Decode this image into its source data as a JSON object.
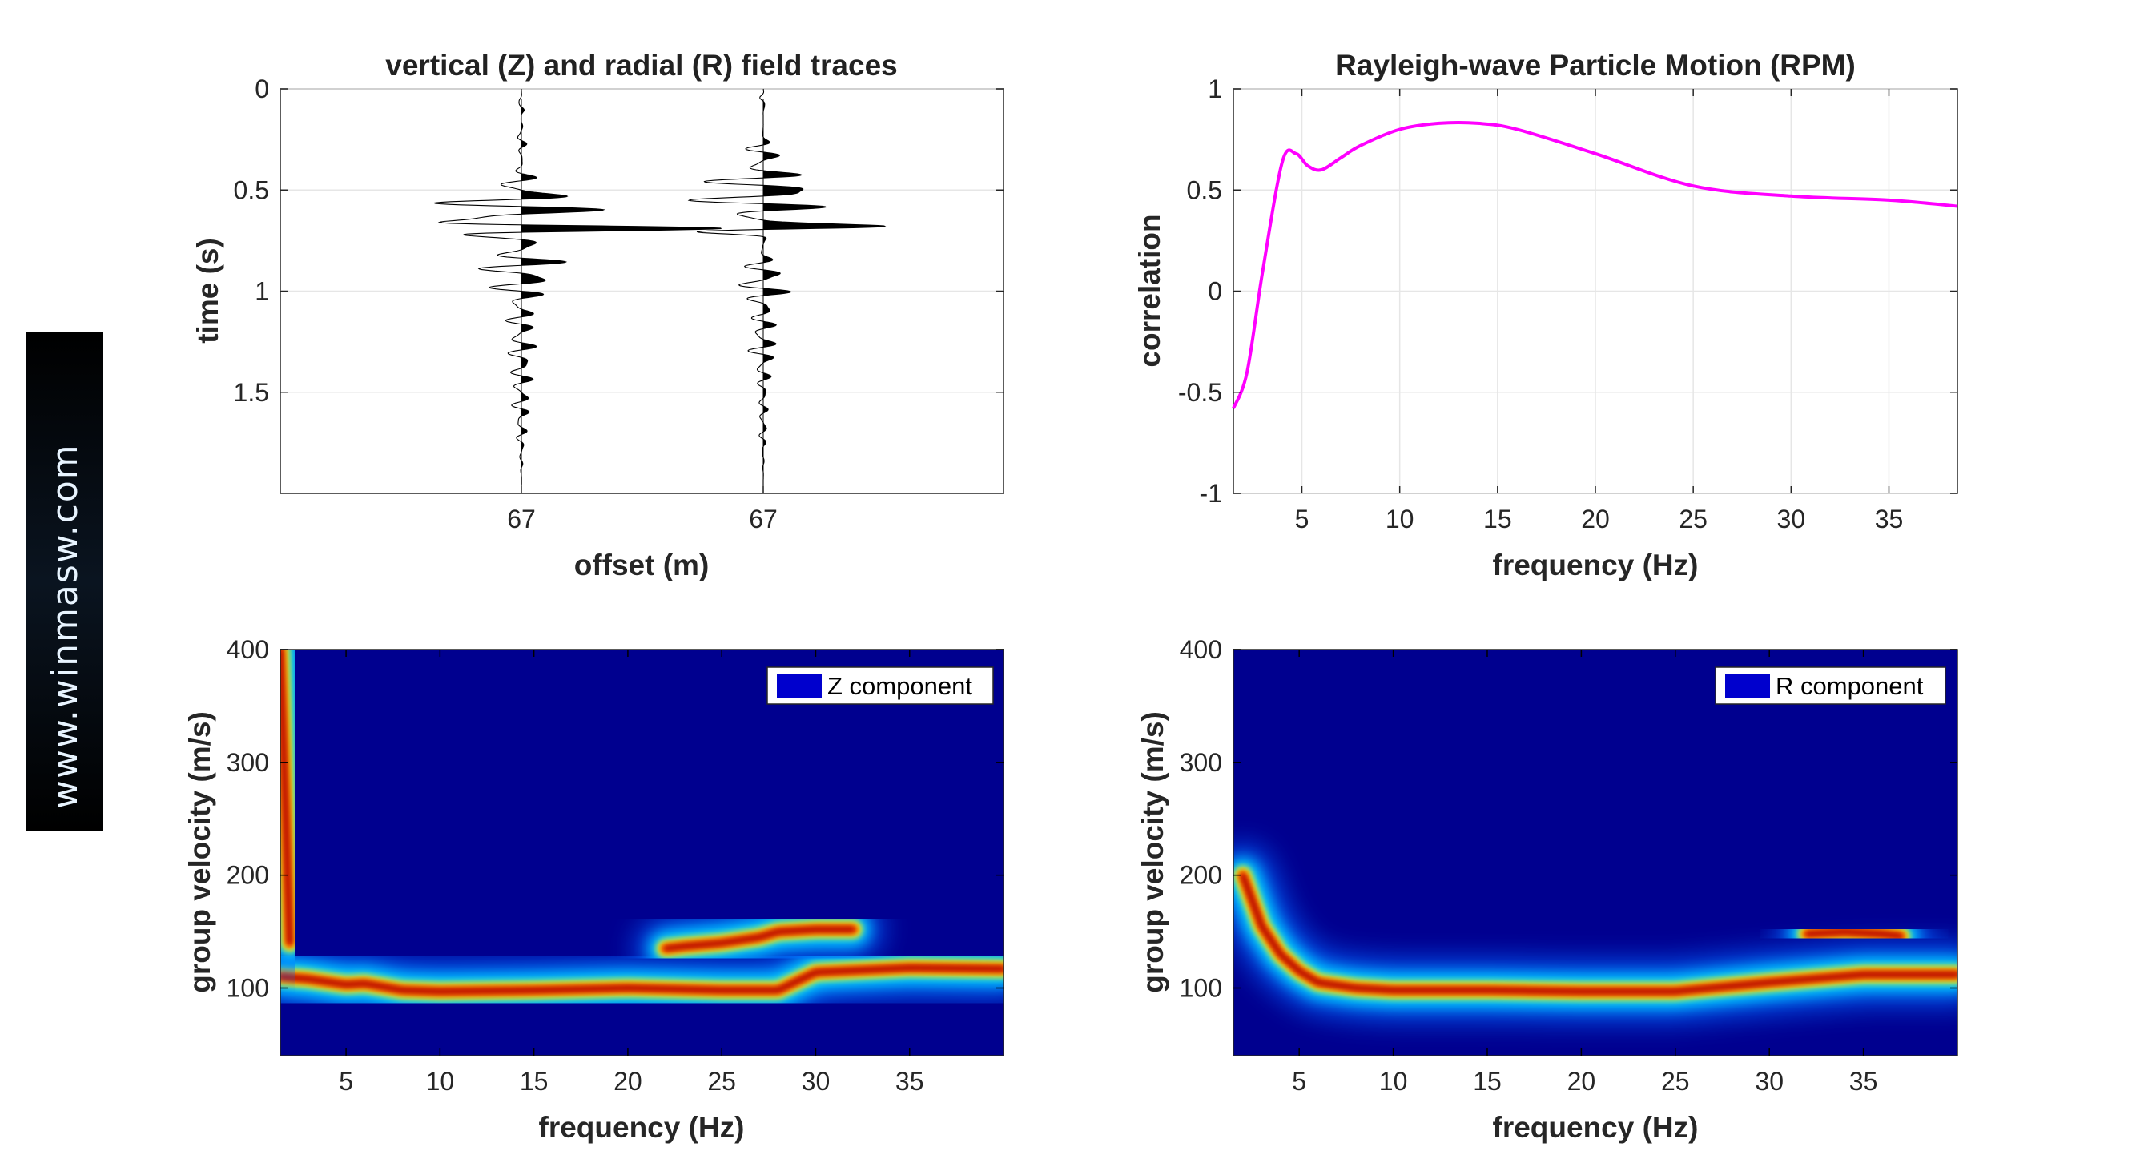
{
  "watermark": "www.winmasw.com",
  "chart_data": [
    {
      "type": "line",
      "title": "vertical (Z) and radial (R) field traces",
      "xlabel": "offset (m)",
      "ylabel": "time (s)",
      "ylim": [
        0,
        2
      ],
      "yticks": [
        "0",
        "0.5",
        "1",
        "1.5"
      ],
      "xtick_labels": [
        "67",
        "67"
      ],
      "grid": true,
      "series": [
        {
          "component": "Z",
          "offset_label": "67"
        },
        {
          "component": "R",
          "offset_label": "67"
        }
      ]
    },
    {
      "type": "line",
      "title": "Rayleigh-wave Particle Motion (RPM)",
      "xlabel": "frequency (Hz)",
      "ylabel": "correlation",
      "xlim": [
        1.5,
        38.5
      ],
      "ylim": [
        -1,
        1
      ],
      "xticks": [
        "5",
        "10",
        "15",
        "20",
        "25",
        "30",
        "35"
      ],
      "yticks": [
        "1",
        "0.5",
        "0",
        "-0.5",
        "-1"
      ],
      "grid": true,
      "color": "#ff00ff",
      "x": [
        1.5,
        2.2,
        3.0,
        4.0,
        4.7,
        5.3,
        6.0,
        7.0,
        8.0,
        10.0,
        12.0,
        14.0,
        16.0,
        20.0,
        25.0,
        30.0,
        35.0,
        38.5
      ],
      "y": [
        -0.58,
        -0.4,
        0.1,
        0.64,
        0.68,
        0.62,
        0.6,
        0.66,
        0.72,
        0.8,
        0.83,
        0.83,
        0.8,
        0.68,
        0.52,
        0.47,
        0.45,
        0.42
      ]
    },
    {
      "type": "heatmap",
      "legend": "Z component",
      "legend_position": "top-right",
      "xlabel": "frequency (Hz)",
      "ylabel": "group velocity (m/s)",
      "xlim": [
        1.5,
        40
      ],
      "ylim": [
        40,
        400
      ],
      "xticks": [
        "5",
        "10",
        "15",
        "20",
        "25",
        "30",
        "35"
      ],
      "yticks": [
        "400",
        "300",
        "200",
        "100"
      ],
      "colormap": "jet",
      "ridges": [
        {
          "x": [
            1.5,
            3,
            5,
            6,
            8,
            10,
            15,
            20,
            25,
            28,
            30,
            35,
            40
          ],
          "y": [
            110,
            108,
            103,
            104,
            98,
            97,
            98,
            100,
            98,
            98,
            114,
            118,
            117
          ]
        },
        {
          "x": [
            22,
            23,
            25,
            27,
            28,
            30,
            32
          ],
          "y": [
            135,
            137,
            140,
            145,
            150,
            152,
            152
          ]
        },
        {
          "x": [
            1.5,
            1.8,
            2.0
          ],
          "y": [
            400,
            250,
            140
          ]
        }
      ]
    },
    {
      "type": "heatmap",
      "legend": "R component",
      "legend_position": "top-right",
      "xlabel": "frequency (Hz)",
      "ylabel": "group velocity (m/s)",
      "xlim": [
        1.5,
        40
      ],
      "ylim": [
        40,
        400
      ],
      "xticks": [
        "5",
        "10",
        "15",
        "20",
        "25",
        "30",
        "35"
      ],
      "yticks": [
        "400",
        "300",
        "200",
        "100"
      ],
      "colormap": "jet",
      "ridges": [
        {
          "x": [
            2,
            3,
            4,
            5,
            6,
            8,
            10,
            15,
            20,
            25,
            30,
            35,
            40
          ],
          "y": [
            200,
            155,
            130,
            115,
            105,
            100,
            98,
            98,
            97,
            97,
            105,
            112,
            112
          ]
        },
        {
          "x": [
            32,
            34,
            36,
            37
          ],
          "y": [
            148,
            150,
            148,
            146
          ]
        }
      ]
    }
  ]
}
